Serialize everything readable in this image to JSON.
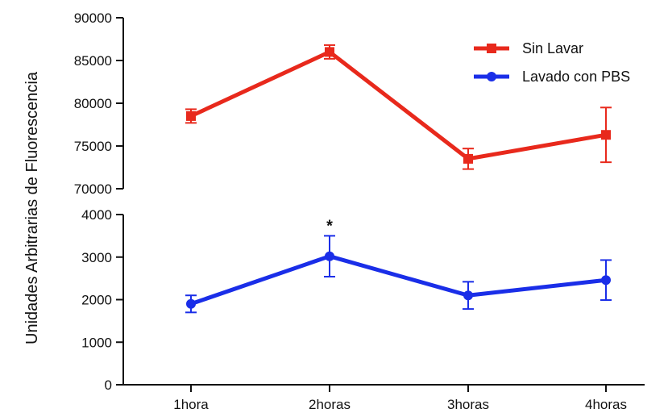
{
  "chart_data": {
    "type": "line",
    "ylabel": "Unidades Arbitrarias de Fluorescencia",
    "categories": [
      "1hora",
      "2horas",
      "3horas",
      "4horas"
    ],
    "axis_breaks": [
      {
        "name": "upper",
        "ylim": [
          70000,
          90000
        ],
        "ticks": [
          "70000",
          "75000",
          "80000",
          "85000",
          "90000"
        ],
        "tick_values": [
          70000,
          75000,
          80000,
          85000,
          90000
        ]
      },
      {
        "name": "lower",
        "ylim": [
          0,
          4000
        ],
        "ticks": [
          "0",
          "1000",
          "2000",
          "3000",
          "4000"
        ],
        "tick_values": [
          0,
          1000,
          2000,
          3000,
          4000
        ]
      }
    ],
    "series": [
      {
        "name": "Sin Lavar",
        "color": "#e8291c",
        "marker": "square",
        "segment": "upper",
        "values": [
          78500,
          86000,
          73500,
          76300
        ],
        "errors": [
          800,
          800,
          1200,
          3200
        ]
      },
      {
        "name": "Lavado con PBS",
        "color": "#1a2ee8",
        "marker": "circle",
        "segment": "lower",
        "values": [
          1900,
          3020,
          2100,
          2460
        ],
        "errors": [
          200,
          480,
          320,
          470
        ]
      }
    ],
    "annotations": [
      {
        "text": "*",
        "category": "2horas",
        "series": "Lavado con PBS"
      }
    ],
    "legend_position": "top-right",
    "grid": false
  }
}
